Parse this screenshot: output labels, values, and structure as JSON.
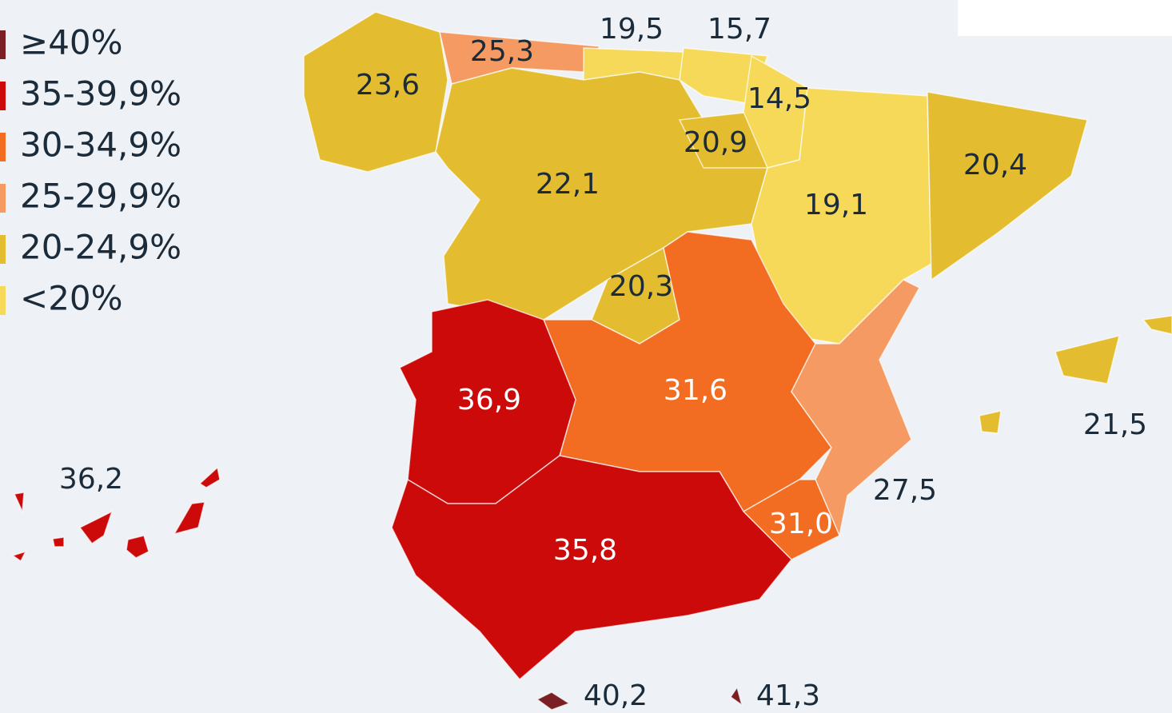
{
  "legend": [
    {
      "label": "≥40%",
      "color": "#7a1f24"
    },
    {
      "label": "35-39,9%",
      "color": "#cc0a0a"
    },
    {
      "label": "30-34,9%",
      "color": "#f26d22"
    },
    {
      "label": "25-29,9%",
      "color": "#f59a62"
    },
    {
      "label": "20-24,9%",
      "color": "#e3bd2f"
    },
    {
      "label": "<20%",
      "color": "#f6d958"
    }
  ],
  "regions": [
    {
      "label": "23,6"
    },
    {
      "label": "25,3"
    },
    {
      "label": "19,5"
    },
    {
      "label": "15,7"
    },
    {
      "label": "14,5"
    },
    {
      "label": "20,9"
    },
    {
      "label": "22,1"
    },
    {
      "label": "20,4"
    },
    {
      "label": "19,1"
    },
    {
      "label": "20,3"
    },
    {
      "label": "36,9"
    },
    {
      "label": "31,6"
    },
    {
      "label": "21,5"
    },
    {
      "label": "36,2"
    },
    {
      "label": "27,5"
    },
    {
      "label": "31,0"
    },
    {
      "label": "35,8"
    },
    {
      "label": "40,2"
    },
    {
      "label": "41,3"
    }
  ]
}
